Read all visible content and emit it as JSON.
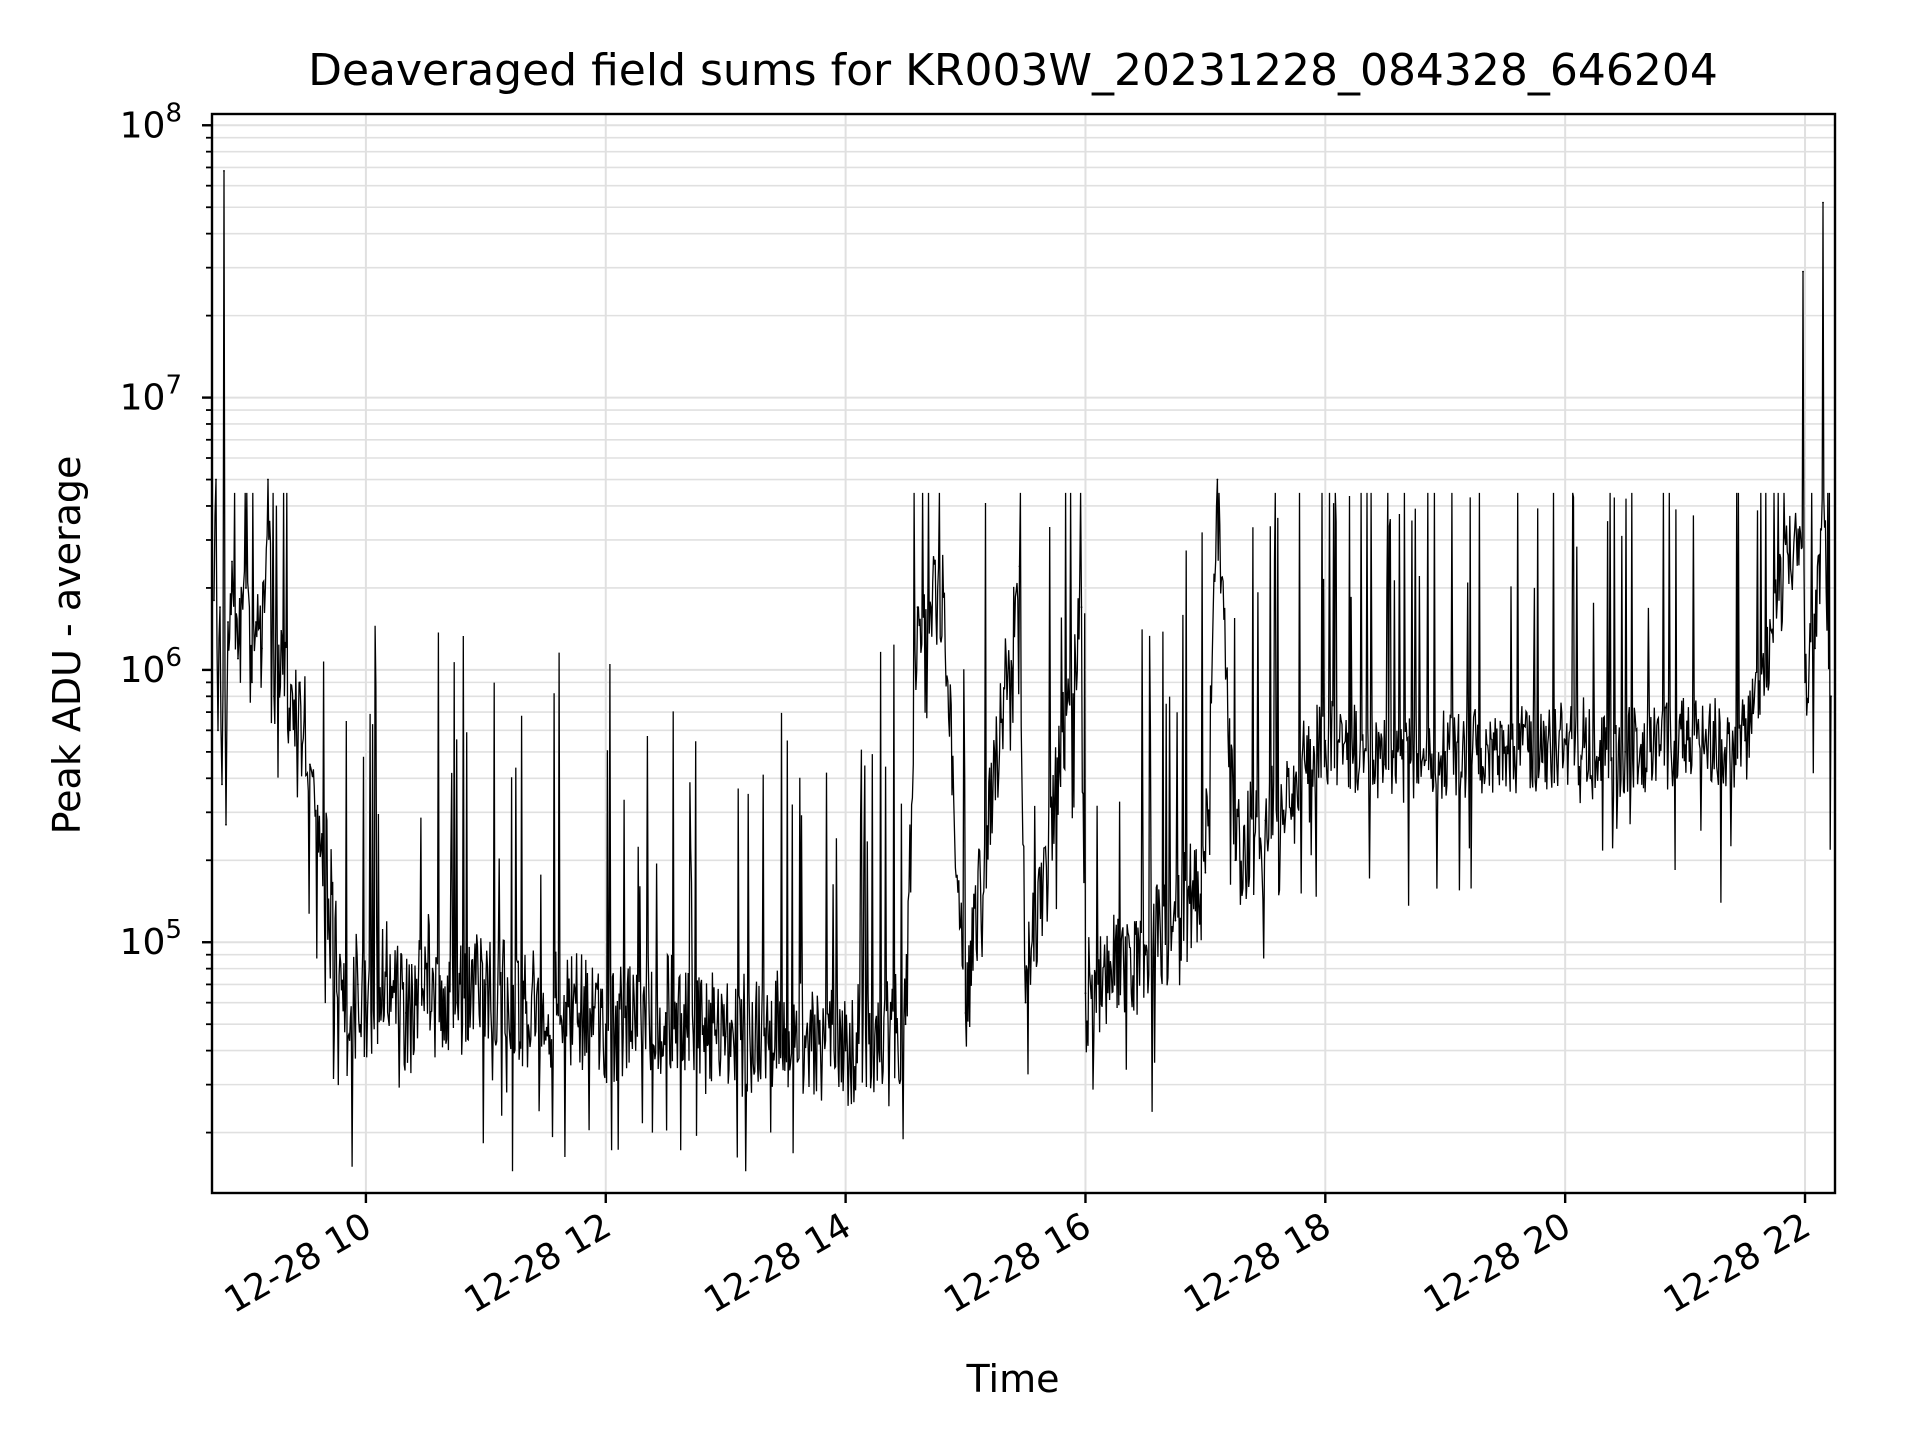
{
  "chart_data": {
    "type": "line",
    "title": "Deaveraged field sums for KR003W_20231228_084328_646204",
    "xlabel": "Time",
    "ylabel": "Peak ADU - average",
    "yscale": "log",
    "ylim": [
      12000,
      110000000
    ],
    "xlim": [
      "2023-12-28 08:43",
      "2023-12-28 22:15"
    ],
    "x_ticks": [
      {
        "value": "2023-12-28 10:00",
        "label": "12-28 10"
      },
      {
        "value": "2023-12-28 12:00",
        "label": "12-28 12"
      },
      {
        "value": "2023-12-28 14:00",
        "label": "12-28 14"
      },
      {
        "value": "2023-12-28 16:00",
        "label": "12-28 16"
      },
      {
        "value": "2023-12-28 18:00",
        "label": "12-28 18"
      },
      {
        "value": "2023-12-28 20:00",
        "label": "12-28 20"
      },
      {
        "value": "2023-12-28 22:00",
        "label": "12-28 22"
      }
    ],
    "y_ticks": [
      {
        "value": 100000,
        "base": "10",
        "exp": "5"
      },
      {
        "value": 1000000,
        "base": "10",
        "exp": "6"
      },
      {
        "value": 10000000,
        "base": "10",
        "exp": "7"
      },
      {
        "value": 100000000,
        "base": "10",
        "exp": "8"
      }
    ],
    "grid": true,
    "line_color": "#000000",
    "grid_color": "#e0e0e0",
    "series": [
      {
        "points": [
          [
            "2023-12-28 08:44",
            1800000
          ],
          [
            "2023-12-28 08:45",
            5000000
          ],
          [
            "2023-12-28 08:46",
            600000
          ],
          [
            "2023-12-28 08:47",
            1700000
          ],
          [
            "2023-12-28 08:48",
            380000
          ],
          [
            "2023-12-28 08:49",
            68000000
          ],
          [
            "2023-12-28 08:50",
            270000
          ],
          [
            "2023-12-28 08:51",
            1500000
          ],
          [
            "2023-12-28 08:53",
            2500000
          ],
          [
            "2023-12-28 08:56",
            1100000
          ],
          [
            "2023-12-28 09:00",
            2000000
          ],
          [
            "2023-12-28 09:03",
            900000
          ],
          [
            "2023-12-28 09:05",
            1500000
          ],
          [
            "2023-12-28 09:08",
            1200000
          ],
          [
            "2023-12-28 09:11",
            5000000
          ],
          [
            "2023-12-28 09:14",
            800000
          ],
          [
            "2023-12-28 09:18",
            1300000
          ],
          [
            "2023-12-28 09:22",
            600000
          ],
          [
            "2023-12-28 09:27",
            900000
          ],
          [
            "2023-12-28 09:32",
            450000
          ],
          [
            "2023-12-28 09:38",
            250000
          ],
          [
            "2023-12-28 09:43",
            150000
          ],
          [
            "2023-12-28 09:47",
            90000
          ],
          [
            "2023-12-28 09:51",
            45000
          ],
          [
            "2023-12-28 09:56",
            70000
          ],
          [
            "2023-12-28 10:00",
            60000
          ],
          [
            "2023-12-28 10:10",
            75000
          ],
          [
            "2023-12-28 10:20",
            55000
          ],
          [
            "2023-12-28 10:30",
            80000
          ],
          [
            "2023-12-28 10:45",
            60000
          ],
          [
            "2023-12-28 11:00",
            70000
          ],
          [
            "2023-12-28 11:20",
            55000
          ],
          [
            "2023-12-28 11:40",
            60000
          ],
          [
            "2023-12-28 12:00",
            50000
          ],
          [
            "2023-12-28 12:30",
            55000
          ],
          [
            "2023-12-28 13:00",
            45000
          ],
          [
            "2023-12-28 13:30",
            48000
          ],
          [
            "2023-12-28 14:00",
            40000
          ],
          [
            "2023-12-28 14:30",
            50000
          ],
          [
            "2023-12-28 14:36",
            1700000
          ],
          [
            "2023-12-28 14:49",
            1850000
          ],
          [
            "2023-12-28 15:00",
            55000
          ],
          [
            "2023-12-28 15:27",
            2400000
          ],
          [
            "2023-12-28 15:30",
            60000
          ],
          [
            "2023-12-28 15:58",
            1700000
          ],
          [
            "2023-12-28 16:00",
            65000
          ],
          [
            "2023-12-28 16:30",
            90000
          ],
          [
            "2023-12-28 16:45",
            120000
          ],
          [
            "2023-12-28 17:00",
            180000
          ],
          [
            "2023-12-28 17:06",
            5000000
          ],
          [
            "2023-12-28 17:15",
            200000
          ],
          [
            "2023-12-28 17:30",
            280000
          ],
          [
            "2023-12-28 17:45",
            400000
          ],
          [
            "2023-12-28 18:00",
            550000
          ],
          [
            "2023-12-28 18:30",
            450000
          ],
          [
            "2023-12-28 19:00",
            500000
          ],
          [
            "2023-12-28 19:30",
            520000
          ],
          [
            "2023-12-28 20:00",
            550000
          ],
          [
            "2023-12-28 20:30",
            500000
          ],
          [
            "2023-12-28 21:00",
            530000
          ],
          [
            "2023-12-28 21:30",
            550000
          ],
          [
            "2023-12-28 21:59",
            29000000
          ],
          [
            "2023-12-28 22:00",
            900000
          ],
          [
            "2023-12-28 22:05",
            1200000
          ],
          [
            "2023-12-28 22:09",
            52000000
          ],
          [
            "2023-12-28 22:13",
            800000
          ]
        ]
      }
    ]
  }
}
